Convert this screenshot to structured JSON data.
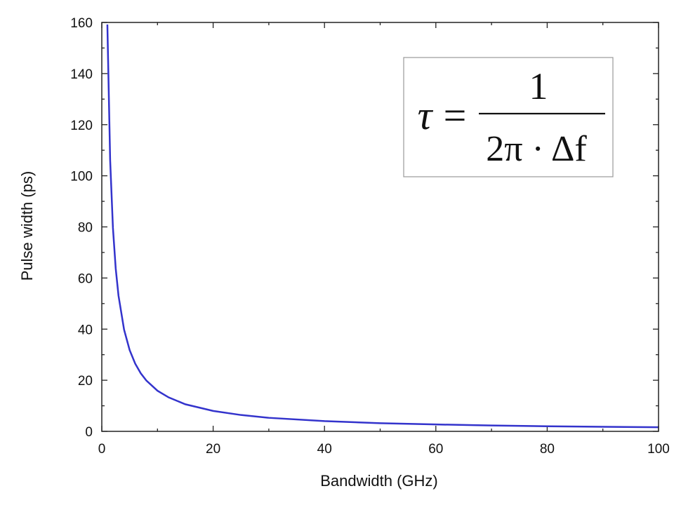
{
  "chart_data": {
    "type": "line",
    "title": "",
    "xlabel": "Bandwidth (GHz)",
    "ylabel": "Pulse width (ps)",
    "xlim": [
      0,
      100
    ],
    "ylim": [
      0,
      160
    ],
    "x_ticks": [
      0,
      20,
      40,
      60,
      80,
      100
    ],
    "y_ticks": [
      0,
      20,
      40,
      60,
      80,
      100,
      120,
      140,
      160
    ],
    "grid": false,
    "legend": "none",
    "series": [
      {
        "color": "#3333cc",
        "function": "1000/(2*pi*x)",
        "x": [
          1,
          1.5,
          2,
          2.5,
          3,
          4,
          5,
          6,
          7,
          8,
          10,
          12,
          15,
          20,
          25,
          30,
          40,
          50,
          60,
          70,
          80,
          90,
          100
        ],
        "y": [
          159.2,
          106.1,
          79.6,
          63.7,
          53.1,
          39.8,
          31.8,
          26.5,
          22.7,
          19.9,
          15.9,
          13.3,
          10.6,
          8.0,
          6.4,
          5.3,
          4.0,
          3.2,
          2.7,
          2.3,
          2.0,
          1.8,
          1.6
        ]
      }
    ],
    "annotation": {
      "lhs": "τ",
      "equals": "=",
      "numerator": "1",
      "denominator": "2π · Δf"
    }
  }
}
